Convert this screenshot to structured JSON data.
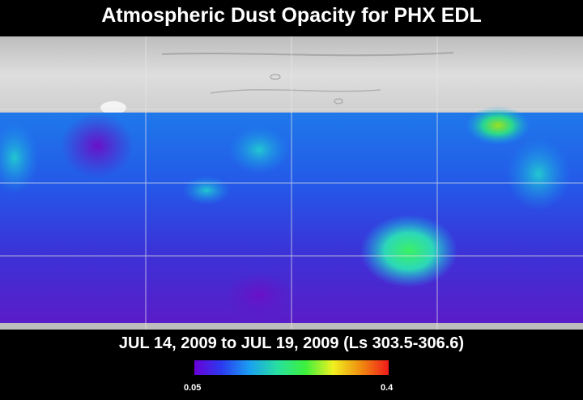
{
  "title": "Atmospheric Dust Opacity for PHX EDL",
  "date_range": "JUL 14, 2009 to JUL 19, 2009 (Ls 303.5-306.6)",
  "colorbar": {
    "min_label": "0.05",
    "max_label": "0.4",
    "min_value": 0.05,
    "max_value": 0.4,
    "colors": [
      "#6a00d8",
      "#2a3cf0",
      "#1aa0f0",
      "#28e0a0",
      "#3cf03c",
      "#f0f020",
      "#f08c10",
      "#f01a1a"
    ]
  },
  "map": {
    "projection": "cylindrical",
    "gridlines": true,
    "no_data_color": "#c8c8c8",
    "dust_highlights": [
      {
        "region": "southern mid-latitudes center",
        "level": "high (~0.25)"
      },
      {
        "region": "northern mid-latitudes east",
        "level": "high (~0.25)"
      },
      {
        "region": "western equatorial",
        "level": "moderate (~0.18)"
      }
    ]
  }
}
